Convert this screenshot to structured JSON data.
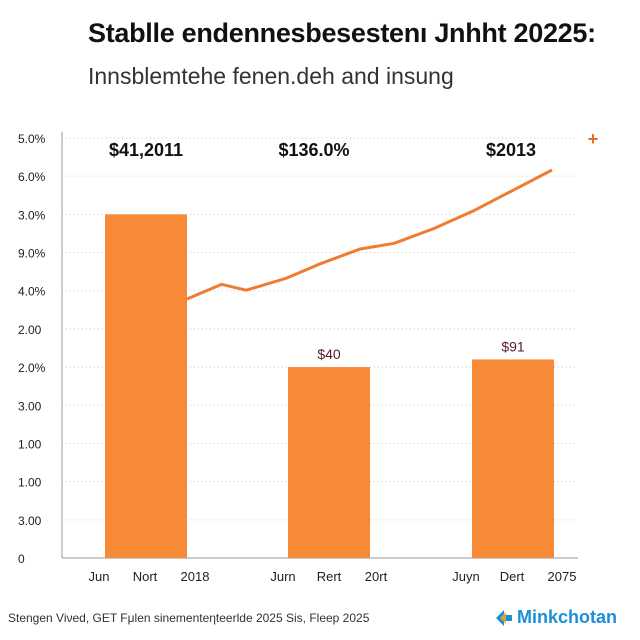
{
  "header": {
    "title": "Stablle endennesbesestenı Jnhht 20225:",
    "subtitle": "Innsblemtehe fenen.deh and insung"
  },
  "footer": {
    "source": "Stengen Viνed, GET Fμlen sinementeηteerlde 2025 Sis, Fleep 2025",
    "brand": "Minkchotan",
    "brand_icon": "brand-logo-icon"
  },
  "chart_data": {
    "type": "bar",
    "y_ticks": [
      "5.0%",
      "6.0%",
      "3.0%",
      "9.0%",
      "4.0%",
      "2.00",
      "2.0%",
      "3.00",
      "1.00",
      "1.00",
      "3.00",
      "0"
    ],
    "x_tick_labels": [
      "Jun",
      "Nort",
      "2018",
      "Jurn",
      "Rert",
      "20rt",
      "Juyn",
      "Dert",
      "2075"
    ],
    "bars": [
      {
        "label": "$41,2011",
        "value": 9
      },
      {
        "label": "$40",
        "value": 5
      },
      {
        "label": "$91",
        "value": 5.2
      }
    ],
    "top_labels": [
      "$41,2011",
      "$136.0%",
      "$2013"
    ],
    "line": {
      "x": [
        0.5,
        0.85,
        1.1,
        1.5,
        1.85,
        2.25,
        2.6,
        3.0,
        3.4,
        3.8,
        4.2
      ],
      "y": [
        6.9,
        7.4,
        7.2,
        7.6,
        8.1,
        8.6,
        8.8,
        9.3,
        9.9,
        10.6,
        11.3
      ]
    },
    "marker": "+",
    "grid": true,
    "colors": {
      "bar": "#f78a36",
      "line": "#ee7d31",
      "marker": "#e0702b",
      "grid": "#c8c8c8",
      "data_label": "#5a1a30"
    }
  }
}
